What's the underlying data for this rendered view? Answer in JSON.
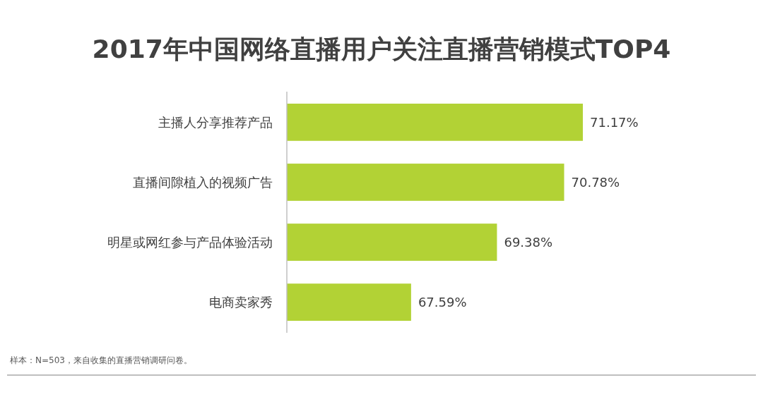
{
  "chart_data": {
    "type": "bar",
    "orientation": "horizontal",
    "title": "2017年中国网络直播用户关注直播营销模式TOP4",
    "categories": [
      "主播人分享推荐产品",
      "直播间隙植入的视频广告",
      "明星或网红参与产品体验活动",
      "电商卖家秀"
    ],
    "values": [
      71.17,
      70.78,
      69.38,
      67.59
    ],
    "color": "#b2d235",
    "xlim": [
      65,
      71.17
    ],
    "tick_labels": "y",
    "data_labels": true,
    "value_labels": [
      "71.17%",
      "70.78%",
      "69.38%",
      "67.59%"
    ],
    "annotations": [
      "样本：N=503，来自收集的直播营销调研问卷。"
    ]
  }
}
